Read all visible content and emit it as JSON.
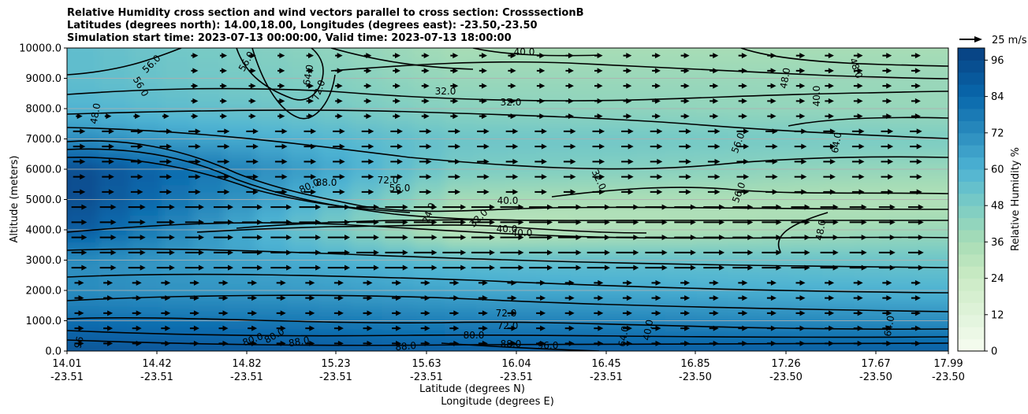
{
  "title_lines": [
    "Relative Humidity cross section and wind vectors parallel to cross section: CrosssectionB",
    "Latitudes (degrees north): 14.00,18.00, Longitudes (degrees east): -23.50,-23.50",
    "Simulation start time: 2023-07-13 00:00:00, Valid time: 2023-07-13 18:00:00"
  ],
  "chart_data": {
    "type": "heatmap",
    "ylabel": "Altitude (meters)",
    "xlabel_1": "Latitude (degrees N)",
    "xlabel_2": "Longitude (degrees E)",
    "ylim": [
      0,
      10000
    ],
    "yticks": [
      "0.0",
      "1000.0",
      "2000.0",
      "3000.0",
      "4000.0",
      "5000.0",
      "6000.0",
      "7000.0",
      "8000.0",
      "9000.0",
      "10000.0"
    ],
    "xticks_lat": [
      "14.01",
      "14.42",
      "14.82",
      "15.23",
      "15.63",
      "16.04",
      "16.45",
      "16.85",
      "17.26",
      "17.67",
      "17.99"
    ],
    "xticks_lon": [
      "-23.51",
      "-23.51",
      "-23.51",
      "-23.51",
      "-23.51",
      "-23.51",
      "-23.51",
      "-23.50",
      "-23.50",
      "-23.50",
      "-23.50"
    ],
    "grid": "horizontal",
    "colorbar": {
      "label": "Relative Humidity %",
      "ticks": [
        "0",
        "12",
        "24",
        "36",
        "48",
        "60",
        "72",
        "84",
        "96"
      ],
      "range": [
        0,
        100
      ]
    },
    "quiver_key": "25 m/s",
    "humidity_by_altitude_m": [
      {
        "altitude": 0,
        "west": 92,
        "middle": 88,
        "east": 88
      },
      {
        "altitude": 1000,
        "west": 82,
        "middle": 76,
        "east": 72
      },
      {
        "altitude": 2000,
        "west": 72,
        "middle": 64,
        "east": 60
      },
      {
        "altitude": 3000,
        "west": 72,
        "middle": 56,
        "east": 52
      },
      {
        "altitude": 4000,
        "west": 90,
        "middle": 28,
        "east": 40
      },
      {
        "altitude": 5000,
        "west": 96,
        "middle": 36,
        "east": 32
      },
      {
        "altitude": 6000,
        "west": 96,
        "middle": 48,
        "east": 40
      },
      {
        "altitude": 7000,
        "west": 72,
        "middle": 52,
        "east": 48
      },
      {
        "altitude": 8000,
        "west": 60,
        "middle": 44,
        "east": 40
      },
      {
        "altitude": 9000,
        "west": 56,
        "middle": 40,
        "east": 40
      },
      {
        "altitude": 10000,
        "west": 56,
        "middle": 36,
        "east": 36
      }
    ],
    "contour_labels": [
      "96",
      "80.0",
      "80.0",
      "88.0",
      "88.0",
      "72.0",
      "72.0",
      "80.0",
      "88.0",
      "96.0",
      "64.0",
      "56.0",
      "40.0",
      "40.0",
      "40.0",
      "32.0",
      "24.0",
      "56.0",
      "72.0",
      "88.0",
      "80.0",
      "32.0",
      "48.0",
      "40.0",
      "56.0",
      "64.0",
      "48.0",
      "48.0",
      "40.0",
      "32.0",
      "32.0",
      "56.0",
      "64.0",
      "72.0",
      "48.0",
      "56.0",
      "56.0",
      "64.0",
      "40.0"
    ]
  }
}
